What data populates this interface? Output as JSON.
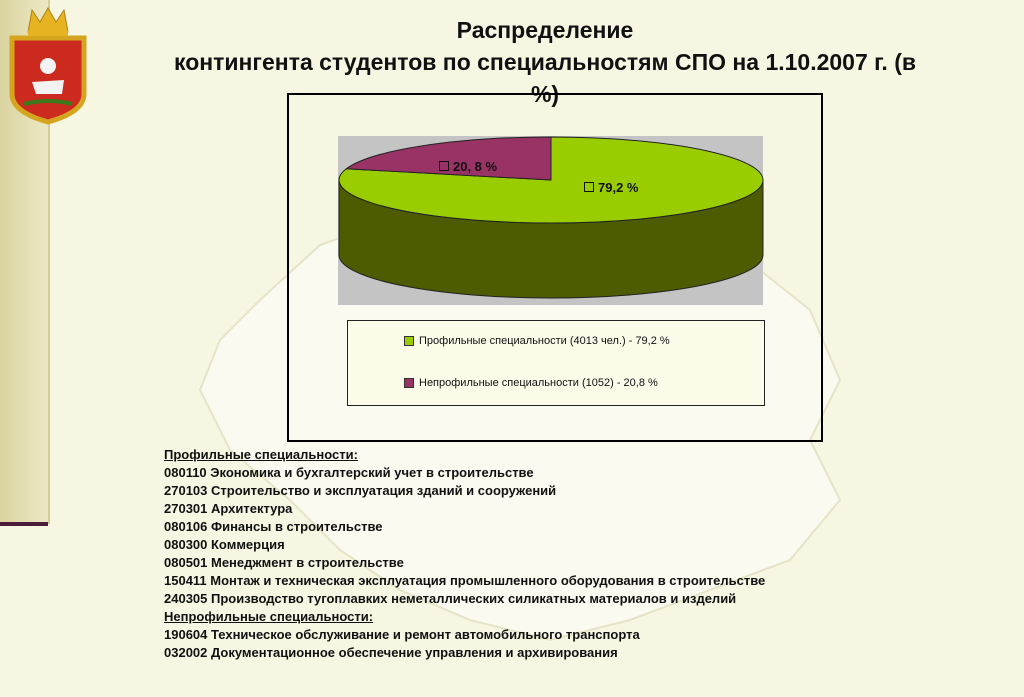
{
  "title": {
    "line1": "Распределение",
    "line2": "контингента студентов по специальностям СПО  на 1.10.2007 г. (в",
    "line3": "%)"
  },
  "colors": {
    "profile": "#9acd00",
    "profile_side": "#4d5c00",
    "nonprofile": "#993366",
    "nonprofile_side": "#5a1e3c",
    "plot_bg": "#c4c4c4"
  },
  "chart_data": {
    "type": "pie",
    "style": "3d",
    "slices": [
      {
        "name": "Профильные специальности (4013 чел.) - 79,2 %",
        "value": 79.2,
        "label": "79,2 %",
        "color": "#9acd00"
      },
      {
        "name": "Непрофильные специальности (1052) - 20,8 %",
        "value": 20.8,
        "label": "20, 8 %",
        "color": "#993366"
      }
    ],
    "legend_placement": "bottom"
  },
  "specialties": {
    "profile_heading": "Профильные специальности:",
    "profile_items": [
      "080110 Экономика и бухгалтерский учет в строительстве",
      "270103 Строительство и эксплуатация зданий и сооружений",
      "270301 Архитектура",
      "080106 Финансы в строительстве",
      "080300 Коммерция",
      "080501 Менеджмент в строительстве",
      "150411 Монтаж и техническая эксплуатация промышленного оборудования в строительстве",
      "240305 Производство тугоплавких неметаллических силикатных материалов и изделий"
    ],
    "nonprofile_heading": "Непрофильные специальности:",
    "nonprofile_items": [
      "190604 Техническое обслуживание и ремонт автомобильного транспорта",
      "032002 Документационное обеспечение управления и архивирования"
    ]
  }
}
